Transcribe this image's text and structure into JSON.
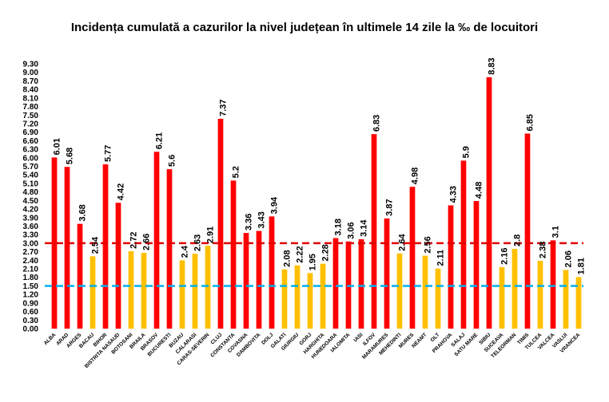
{
  "chart_data": {
    "type": "bar",
    "title": "Incidența cumulată a cazurilor la nivel județean în ultimele 14 zile la ‰ de locuitori",
    "xlabel": "",
    "ylabel": "",
    "ylim": [
      0,
      9.3
    ],
    "yticks": [
      "0.00",
      "0.30",
      "0.60",
      "0.90",
      "1.20",
      "1.50",
      "1.80",
      "2.10",
      "2.40",
      "2.70",
      "3.00",
      "3.30",
      "3.60",
      "3.90",
      "4.20",
      "4.50",
      "4.80",
      "5.10",
      "5.40",
      "5.70",
      "6.00",
      "6.30",
      "6.60",
      "6.90",
      "7.20",
      "7.50",
      "7.80",
      "8.10",
      "8.40",
      "8.70",
      "9.00",
      "9.30"
    ],
    "categories": [
      "ALBA",
      "ARAD",
      "ARGES",
      "BACAU",
      "BIHOR",
      "BISTRITA NASAUD",
      "BOTOSANI",
      "BRAILA",
      "BRASOV",
      "BUCURESTI",
      "BUZAU",
      "CALARASI",
      "CARAS-SEVERIN",
      "CLUJ",
      "CONSTANTA",
      "COVASNA",
      "DAMBOVITA",
      "DOLJ",
      "GALATI",
      "GIURGIU",
      "GORJ",
      "HARGHITA",
      "HUNEDOARA",
      "IALOMITA",
      "IASI",
      "ILFOV",
      "MARAMURES",
      "MEHEDINTI",
      "MURES",
      "NEAMT",
      "OLT",
      "PRAHOVA",
      "SALAJ",
      "SATU MARE",
      "SIBIU",
      "SUCEAVA",
      "TELEORMAN",
      "TIMIS",
      "TULCEA",
      "VALCEA",
      "VASLUI",
      "VRANCEA"
    ],
    "values": [
      6.01,
      5.68,
      3.68,
      2.54,
      5.77,
      4.42,
      2.72,
      2.66,
      6.21,
      5.6,
      2.4,
      2.63,
      2.91,
      7.37,
      5.2,
      3.36,
      3.43,
      3.94,
      2.08,
      2.22,
      1.95,
      2.28,
      3.18,
      3.06,
      3.14,
      6.83,
      3.87,
      2.64,
      4.98,
      2.56,
      2.11,
      4.33,
      5.9,
      4.48,
      8.83,
      2.16,
      2.8,
      6.85,
      2.38,
      3.1,
      2.06,
      1.81
    ],
    "labels": [
      "6.01",
      "5.68",
      "3.68",
      "2.54",
      "5.77",
      "4.42",
      "2.72",
      "2.66",
      "6.21",
      "5.6",
      "2.4",
      "2.63",
      "2.91",
      "7.37",
      "5.2",
      "3.36",
      "3.43",
      "3.94",
      "2.08",
      "2.22",
      "1.95",
      "2.28",
      "3.18",
      "3.06",
      "3.14",
      "6.83",
      "3.87",
      "2.64",
      "4.98",
      "2.56",
      "2.11",
      "4.33",
      "5.9",
      "4.48",
      "8.83",
      "2.16",
      "2.8",
      "6.85",
      "2.38",
      "3.1",
      "2.06",
      "1.81"
    ],
    "threshold_high": 3.0,
    "threshold_low": 1.5,
    "colors": {
      "above": "#ff0000",
      "below": "#ffc000",
      "high_line": "#e00000",
      "low_line": "#00b0f0"
    },
    "grid": false
  }
}
